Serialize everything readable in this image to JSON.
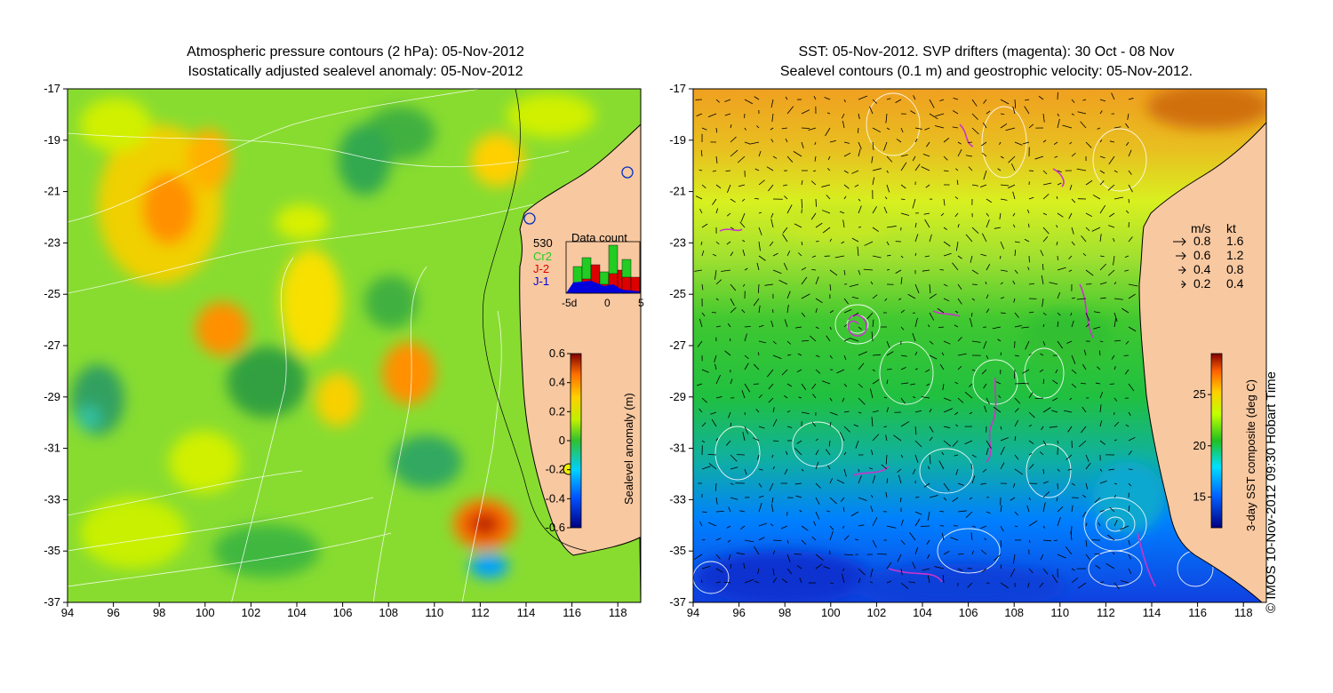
{
  "left_panel": {
    "title_line1": "Atmospheric pressure contours (2 hPa): 05-Nov-2012",
    "title_line2": "Isostatically adjusted sealevel anomaly: 05-Nov-2012",
    "colorbar": {
      "label": "Sealevel anomaly (m)",
      "ticks": [
        "0.6",
        "0.4",
        "0.2",
        "0",
        "-0.2",
        "-0.4",
        "-0.6"
      ],
      "range": [
        -0.6,
        0.6
      ]
    },
    "data_count_inset": {
      "title": "Data count",
      "max_label": "530",
      "legend": [
        {
          "name": "Cr2",
          "color": "#22cc22"
        },
        {
          "name": "J-2",
          "color": "#dd0000"
        },
        {
          "name": "J-1",
          "color": "#0000dd"
        }
      ],
      "x_ticks": [
        "-5d",
        "0",
        "5"
      ]
    }
  },
  "right_panel": {
    "title_line1": "SST: 05-Nov-2012. SVP drifters (magenta): 30 Oct - 08 Nov",
    "title_line2": "Sealevel contours (0.1 m) and geostrophic velocity: 05-Nov-2012.",
    "colorbar": {
      "label": "3-day SST composite (deg C)",
      "ticks": [
        "25",
        "20",
        "15"
      ],
      "range": [
        12,
        29
      ]
    },
    "velocity_legend": {
      "headers": [
        "m/s",
        "kt"
      ],
      "rows": [
        {
          "ms": "0.8",
          "kt": "1.6"
        },
        {
          "ms": "0.6",
          "kt": "1.2"
        },
        {
          "ms": "0.4",
          "kt": "0.8"
        },
        {
          "ms": "0.2",
          "kt": "0.4"
        }
      ]
    }
  },
  "axes": {
    "x_ticks": [
      "94",
      "96",
      "98",
      "100",
      "102",
      "104",
      "106",
      "108",
      "110",
      "112",
      "114",
      "116",
      "118"
    ],
    "y_ticks": [
      "-17",
      "-19",
      "-21",
      "-23",
      "-25",
      "-27",
      "-29",
      "-31",
      "-33",
      "-35",
      "-37"
    ]
  },
  "copyright": "© IMOS 10-Nov-2012 09:30 Hobart Time",
  "colors": {
    "land": "#f8c8a0",
    "drifter": "#cc33cc",
    "contour": "#ffffff",
    "coast": "#000000"
  }
}
